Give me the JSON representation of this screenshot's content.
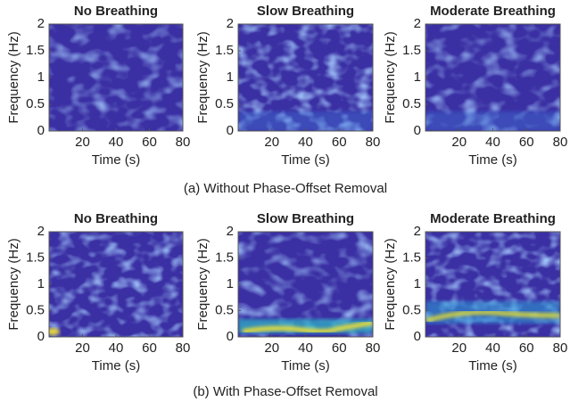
{
  "chart_data": [
    {
      "type": "spectrogram",
      "title": "No Breathing",
      "xlabel": "Time (s)",
      "ylabel": "Frequency (Hz)",
      "xlim": [
        0,
        80
      ],
      "xticks": [
        20,
        40,
        60,
        80
      ],
      "ylim": [
        0,
        2
      ],
      "yticks": [
        0,
        0.5,
        1,
        1.5,
        2
      ]
    },
    {
      "type": "spectrogram",
      "title": "Slow Breathing",
      "xlabel": "Time (s)",
      "ylabel": "Frequency (Hz)",
      "xlim": [
        0,
        80
      ],
      "xticks": [
        20,
        40,
        60,
        80
      ],
      "ylim": [
        0,
        2
      ],
      "yticks": [
        0,
        0.5,
        1,
        1.5,
        2
      ]
    },
    {
      "type": "spectrogram",
      "title": "Moderate Breathing",
      "xlabel": "Time (s)",
      "ylabel": "Frequency (Hz)",
      "xlim": [
        0,
        80
      ],
      "xticks": [
        20,
        40,
        60,
        80
      ],
      "ylim": [
        0,
        2
      ],
      "yticks": [
        0,
        0.5,
        1,
        1.5,
        2
      ]
    },
    {
      "type": "spectrogram",
      "title": "No Breathing",
      "xlabel": "Time (s)",
      "ylabel": "Frequency (Hz)",
      "xlim": [
        0,
        80
      ],
      "xticks": [
        20,
        40,
        60,
        80
      ],
      "ylim": [
        0,
        2
      ],
      "yticks": [
        0,
        0.5,
        1,
        1.5,
        2
      ]
    },
    {
      "type": "spectrogram",
      "title": "Slow Breathing",
      "xlabel": "Time (s)",
      "ylabel": "Frequency (Hz)",
      "xlim": [
        0,
        80
      ],
      "xticks": [
        20,
        40,
        60,
        80
      ],
      "ylim": [
        0,
        2
      ],
      "yticks": [
        0,
        0.5,
        1,
        1.5,
        2
      ]
    },
    {
      "type": "spectrogram",
      "title": "Moderate Breathing",
      "xlabel": "Time (s)",
      "ylabel": "Frequency (Hz)",
      "xlim": [
        0,
        80
      ],
      "xticks": [
        20,
        40,
        60,
        80
      ],
      "ylim": [
        0,
        2
      ],
      "yticks": [
        0,
        0.5,
        1,
        1.5,
        2
      ]
    }
  ],
  "captions": [
    "(a) Without Phase-Offset Removal",
    "(b) With Phase-Offset Removal"
  ]
}
